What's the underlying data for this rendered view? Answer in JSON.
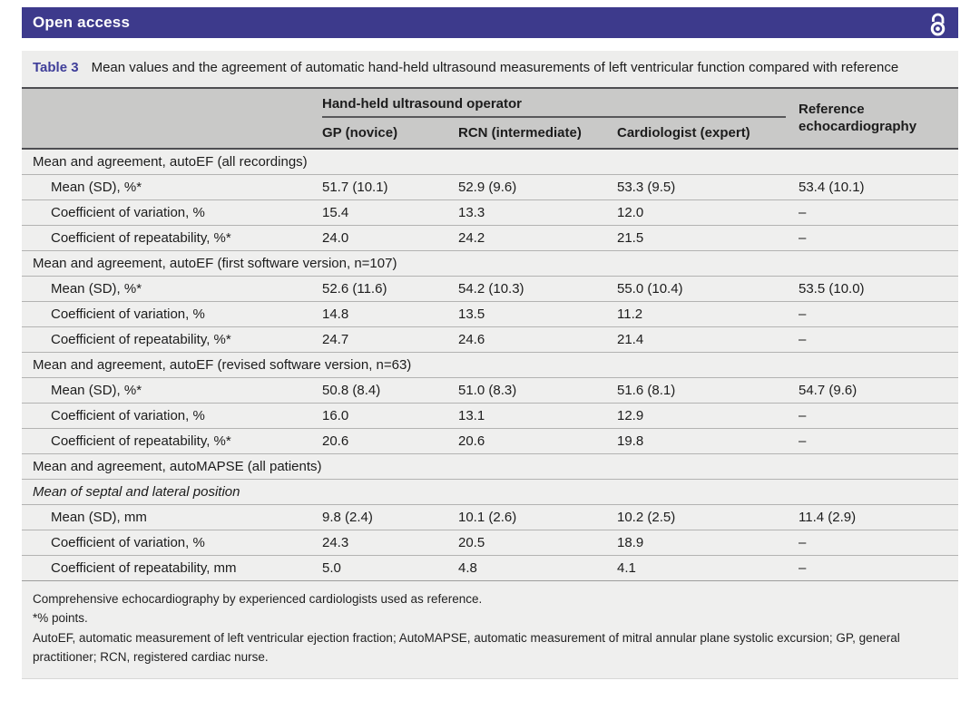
{
  "banner": {
    "title": "Open access",
    "icon": "open-access-padlock",
    "bg_color": "#3d3a8c"
  },
  "caption": {
    "label": "Table 3",
    "label_color": "#3f3e99",
    "text": "Mean values and the agreement of automatic hand-held ultrasound measurements of left ventricular function compared with reference"
  },
  "table": {
    "group_header": "Hand-held ultrasound operator",
    "reference_header": "Reference echocardiography",
    "columns": [
      "GP (novice)",
      "RCN (intermediate)",
      "Cardiologist (expert)"
    ],
    "sections": [
      {
        "header": "Mean and agreement, autoEF (all recordings)",
        "rows": [
          {
            "label": "Mean (SD), %*",
            "values": [
              "51.7 (10.1)",
              "52.9 (9.6)",
              "53.3 (9.5)",
              "53.4 (10.1)"
            ]
          },
          {
            "label": "Coefficient of variation, %",
            "values": [
              "15.4",
              "13.3",
              "12.0",
              "–"
            ]
          },
          {
            "label": "Coefficient of repeatability, %*",
            "values": [
              "24.0",
              "24.2",
              "21.5",
              "–"
            ]
          }
        ]
      },
      {
        "header": "Mean and agreement, autoEF (first software version, n=107)",
        "rows": [
          {
            "label": "Mean (SD), %*",
            "values": [
              "52.6 (11.6)",
              "54.2 (10.3)",
              "55.0 (10.4)",
              "53.5 (10.0)"
            ]
          },
          {
            "label": "Coefficient of variation, %",
            "values": [
              "14.8",
              "13.5",
              "11.2",
              "–"
            ]
          },
          {
            "label": "Coefficient of repeatability, %*",
            "values": [
              "24.7",
              "24.6",
              "21.4",
              "–"
            ]
          }
        ]
      },
      {
        "header": "Mean and agreement, autoEF (revised software version, n=63)",
        "rows": [
          {
            "label": "Mean (SD), %*",
            "values": [
              "50.8 (8.4)",
              "51.0 (8.3)",
              "51.6 (8.1)",
              "54.7 (9.6)"
            ]
          },
          {
            "label": "Coefficient of variation, %",
            "values": [
              "16.0",
              "13.1",
              "12.9",
              "–"
            ]
          },
          {
            "label": "Coefficient of repeatability, %*",
            "values": [
              "20.6",
              "20.6",
              "19.8",
              "–"
            ]
          }
        ]
      },
      {
        "header": "Mean and agreement, autoMAPSE (all patients)",
        "subheader": "Mean of septal and lateral position",
        "rows": [
          {
            "label": "Mean (SD), mm",
            "values": [
              "9.8 (2.4)",
              "10.1 (2.6)",
              "10.2 (2.5)",
              "11.4 (2.9)"
            ]
          },
          {
            "label": "Coefficient of variation, %",
            "values": [
              "24.3",
              "20.5",
              "18.9",
              "–"
            ]
          },
          {
            "label": "Coefficient of repeatability, mm",
            "values": [
              "5.0",
              "4.8",
              "4.1",
              "–"
            ]
          }
        ]
      }
    ]
  },
  "footnotes": [
    "Comprehensive echocardiography by experienced cardiologists used as reference.",
    "*% points.",
    "AutoEF, automatic measurement of left ventricular ejection fraction; AutoMAPSE, automatic measurement of mitral annular plane systolic excursion; GP, general practitioner; RCN, registered cardiac nurse."
  ]
}
